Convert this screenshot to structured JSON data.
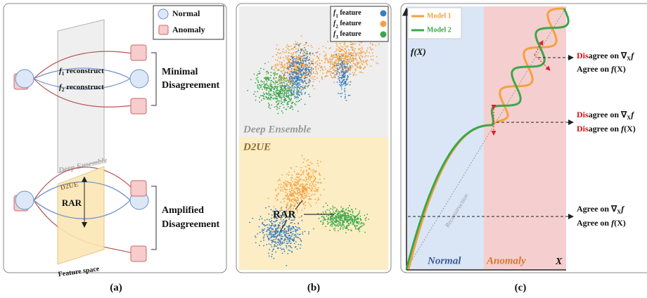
{
  "panel_a": {
    "legend": [
      "Normal",
      "Anomaly"
    ],
    "paths": [
      [
        {
          "t": "f",
          "i": true
        },
        {
          "t": "1",
          "sub": true
        },
        {
          "t": " reconstruct"
        }
      ],
      [
        {
          "t": "f",
          "i": true
        },
        {
          "t": "2",
          "sub": true
        },
        {
          "t": " reconstruct"
        }
      ]
    ],
    "top_space": "Deep Ensemble",
    "top_result": [
      "Minimal",
      "Disagreement"
    ],
    "bottom_space": "D2UE",
    "rar": "RAR",
    "feature_space": "Feature space",
    "bottom_result": [
      "Amplified",
      "Disagreement"
    ],
    "label": "(a)"
  },
  "panel_b": {
    "features": [
      {
        "label": [
          {
            "t": "f",
            "i": true
          },
          {
            "t": "1",
            "sub": true
          },
          {
            "t": " feature"
          }
        ],
        "color": "#3a7ebf"
      },
      {
        "label": [
          {
            "t": "f",
            "i": true
          },
          {
            "t": "2",
            "sub": true
          },
          {
            "t": " feature"
          }
        ],
        "color": "#f5a040"
      },
      {
        "label": [
          {
            "t": "f",
            "i": true
          },
          {
            "t": "3",
            "sub": true
          },
          {
            "t": " feature"
          }
        ],
        "color": "#3aa84a"
      }
    ],
    "top_title": "Deep Ensemble",
    "bottom_title": "D2UE",
    "rar": "RAR",
    "label": "(b)"
  },
  "panel_c": {
    "legend": [
      {
        "name": "Model 1",
        "color": "#f5a040"
      },
      {
        "name": "Model 2",
        "color": "#3aa84a"
      }
    ],
    "y_label": [
      {
        "t": "f(X)",
        "i": true
      }
    ],
    "diagonal": "Reconstruction",
    "normal": "Normal",
    "anomaly": "Anomaly",
    "x_label": "X",
    "annotations": [
      [
        [
          {
            "t": "Dis",
            "red": true
          },
          {
            "t": "agree on ∇"
          },
          {
            "t": "X",
            "sub": true
          },
          {
            "t": "f",
            "i": true
          }
        ],
        [
          {
            "t": "Agree on "
          },
          {
            "t": "f",
            "i": true
          },
          {
            "t": "(X)"
          }
        ]
      ],
      [
        [
          {
            "t": "Dis",
            "red": true
          },
          {
            "t": "agree on ∇"
          },
          {
            "t": "X",
            "sub": true
          },
          {
            "t": "f",
            "i": true
          }
        ],
        [
          {
            "t": "Dis",
            "red": true
          },
          {
            "t": "agree on "
          },
          {
            "t": "f",
            "i": true
          },
          {
            "t": "(X)"
          }
        ]
      ],
      [
        [
          {
            "t": "Agree on ∇"
          },
          {
            "t": "X",
            "sub": true
          },
          {
            "t": "f",
            "i": true
          }
        ],
        [
          {
            "t": "Agree on "
          },
          {
            "t": "f",
            "i": true
          },
          {
            "t": "(X)"
          }
        ]
      ]
    ],
    "label": "(c)"
  }
}
